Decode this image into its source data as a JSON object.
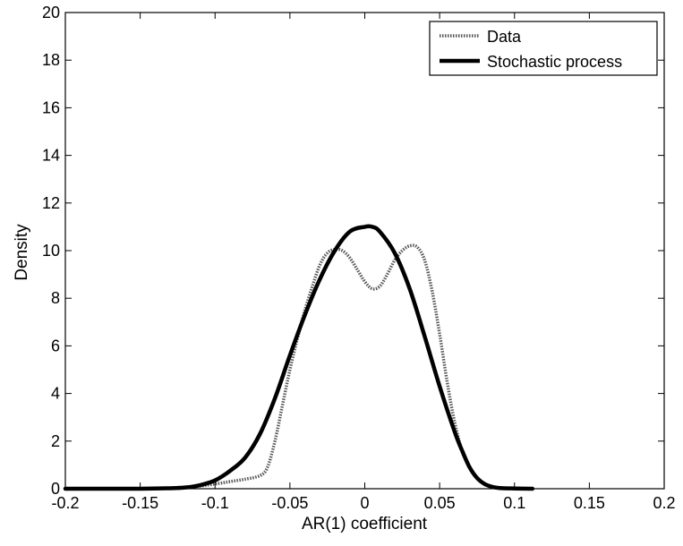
{
  "chart_data": {
    "type": "line",
    "title": "",
    "xlabel": "AR(1) coefficient",
    "ylabel": "Density",
    "xlim": [
      -0.2,
      0.2
    ],
    "ylim": [
      0,
      20
    ],
    "x_ticks": [
      -0.2,
      -0.15,
      -0.1,
      -0.05,
      0,
      0.05,
      0.1,
      0.15,
      0.2
    ],
    "x_tick_labels": [
      "-0.2",
      "-0.15",
      "-0.1",
      "-0.05",
      "0",
      "0.05",
      "0.1",
      "0.15",
      "0.2"
    ],
    "y_ticks": [
      0,
      2,
      4,
      6,
      8,
      10,
      12,
      14,
      16,
      18,
      20
    ],
    "y_tick_labels": [
      "0",
      "2",
      "4",
      "6",
      "8",
      "10",
      "12",
      "14",
      "16",
      "18",
      "20"
    ],
    "grid": false,
    "legend_position": "top-right",
    "series": [
      {
        "name": "Data",
        "style": "dotted",
        "color": "#555555",
        "x": [
          -0.2,
          -0.15,
          -0.12,
          -0.1,
          -0.09,
          -0.08,
          -0.07,
          -0.065,
          -0.06,
          -0.055,
          -0.05,
          -0.045,
          -0.04,
          -0.035,
          -0.03,
          -0.025,
          -0.02,
          -0.015,
          -0.01,
          -0.005,
          0,
          0.005,
          0.01,
          0.015,
          0.02,
          0.025,
          0.03,
          0.035,
          0.04,
          0.045,
          0.05,
          0.055,
          0.06,
          0.065,
          0.07,
          0.075,
          0.08,
          0.085,
          0.09,
          0.1,
          0.112
        ],
        "y": [
          0,
          0,
          0.05,
          0.2,
          0.3,
          0.4,
          0.55,
          0.9,
          2.0,
          3.5,
          5.0,
          6.3,
          7.5,
          8.5,
          9.4,
          9.9,
          10.05,
          10.0,
          9.7,
          9.2,
          8.7,
          8.4,
          8.5,
          9.0,
          9.6,
          10.0,
          10.2,
          10.15,
          9.6,
          8.3,
          6.5,
          4.5,
          2.8,
          1.6,
          0.9,
          0.45,
          0.2,
          0.1,
          0.04,
          0.01,
          0
        ]
      },
      {
        "name": "Stochastic process",
        "style": "solid",
        "color": "#000000",
        "x": [
          -0.2,
          -0.15,
          -0.13,
          -0.12,
          -0.11,
          -0.1,
          -0.09,
          -0.08,
          -0.07,
          -0.06,
          -0.05,
          -0.04,
          -0.03,
          -0.02,
          -0.01,
          0,
          0.005,
          0.01,
          0.02,
          0.03,
          0.04,
          0.05,
          0.06,
          0.065,
          0.07,
          0.075,
          0.08,
          0.085,
          0.09,
          0.1,
          0.112
        ],
        "y": [
          0,
          0,
          0.02,
          0.05,
          0.15,
          0.35,
          0.75,
          1.3,
          2.3,
          3.8,
          5.6,
          7.3,
          8.8,
          10.0,
          10.8,
          11.0,
          11.0,
          10.8,
          9.9,
          8.4,
          6.4,
          4.3,
          2.4,
          1.6,
          0.9,
          0.45,
          0.2,
          0.08,
          0.03,
          0.01,
          0
        ]
      }
    ]
  }
}
